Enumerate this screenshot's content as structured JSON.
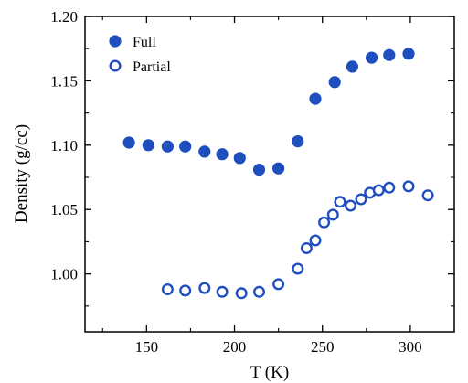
{
  "chart_data": {
    "type": "scatter",
    "xlabel": "T (K)",
    "ylabel": "Density (g/cc)",
    "xlim": [
      115,
      325
    ],
    "ylim": [
      0.955,
      1.2
    ],
    "x_ticks": [
      150,
      200,
      250,
      300
    ],
    "x_tick_labels": [
      "150",
      "200",
      "250",
      "300"
    ],
    "y_ticks": [
      1.0,
      1.05,
      1.1,
      1.15,
      1.2
    ],
    "y_tick_labels": [
      "1.00",
      "1.05",
      "1.10",
      "1.15",
      "1.20"
    ],
    "grid": false,
    "legend_position": "top-left",
    "series": [
      {
        "name": "Full",
        "marker": "filled-circle",
        "color": "#1f4fbf",
        "points": [
          {
            "x": 140,
            "y": 1.102
          },
          {
            "x": 151,
            "y": 1.1
          },
          {
            "x": 162,
            "y": 1.099
          },
          {
            "x": 172,
            "y": 1.099
          },
          {
            "x": 183,
            "y": 1.095
          },
          {
            "x": 193,
            "y": 1.093
          },
          {
            "x": 203,
            "y": 1.09
          },
          {
            "x": 214,
            "y": 1.081
          },
          {
            "x": 225,
            "y": 1.082
          },
          {
            "x": 236,
            "y": 1.103
          },
          {
            "x": 246,
            "y": 1.136
          },
          {
            "x": 257,
            "y": 1.149
          },
          {
            "x": 267,
            "y": 1.161
          },
          {
            "x": 278,
            "y": 1.168
          },
          {
            "x": 288,
            "y": 1.17
          },
          {
            "x": 299,
            "y": 1.171
          }
        ]
      },
      {
        "name": "Partial",
        "marker": "open-circle",
        "color": "#1f4fbf",
        "points": [
          {
            "x": 162,
            "y": 0.988
          },
          {
            "x": 172,
            "y": 0.987
          },
          {
            "x": 183,
            "y": 0.989
          },
          {
            "x": 193,
            "y": 0.986
          },
          {
            "x": 204,
            "y": 0.985
          },
          {
            "x": 214,
            "y": 0.986
          },
          {
            "x": 225,
            "y": 0.992
          },
          {
            "x": 236,
            "y": 1.004
          },
          {
            "x": 241,
            "y": 1.02
          },
          {
            "x": 246,
            "y": 1.026
          },
          {
            "x": 251,
            "y": 1.04
          },
          {
            "x": 256,
            "y": 1.046
          },
          {
            "x": 260,
            "y": 1.056
          },
          {
            "x": 266,
            "y": 1.053
          },
          {
            "x": 272,
            "y": 1.058
          },
          {
            "x": 277,
            "y": 1.063
          },
          {
            "x": 282,
            "y": 1.065
          },
          {
            "x": 288,
            "y": 1.067
          },
          {
            "x": 299,
            "y": 1.068
          },
          {
            "x": 310,
            "y": 1.061
          }
        ]
      }
    ]
  }
}
